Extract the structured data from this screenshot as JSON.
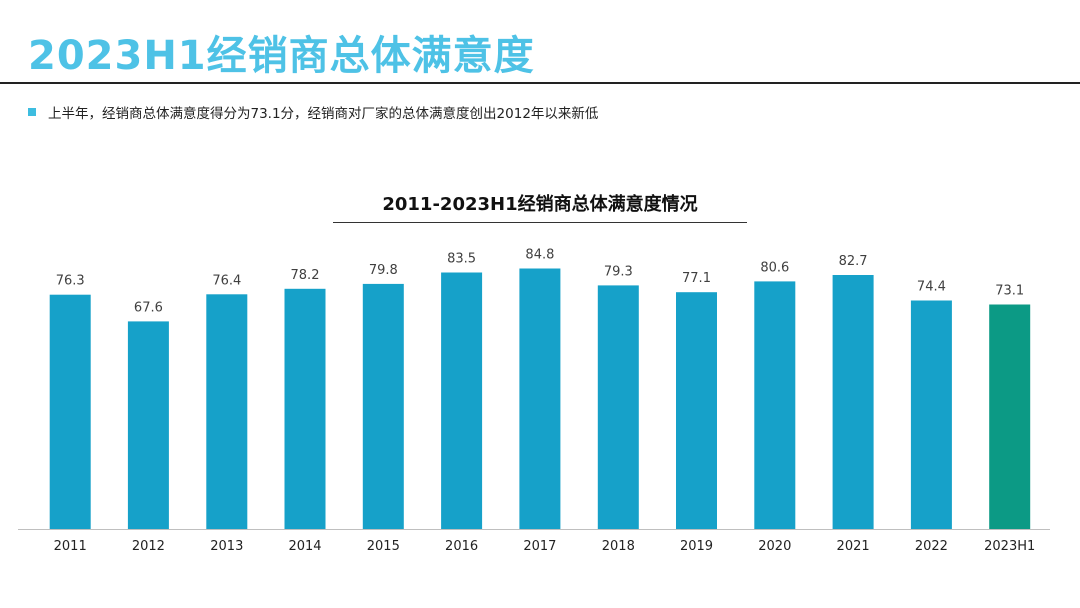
{
  "page": {
    "title": "2023H1经销商总体满意度",
    "title_color": "#4ec2e6",
    "bullet_text": "上半年，经销商总体满意度得分为73.1分，经销商对厂家的总体满意度创出2012年以来新低",
    "bullet_color": "#3dbde0"
  },
  "chart_data": {
    "type": "bar",
    "title": "2011-2023H1经销商总体满意度情况",
    "xlabel": "",
    "ylabel": "",
    "categories": [
      "2011",
      "2012",
      "2013",
      "2014",
      "2015",
      "2016",
      "2017",
      "2018",
      "2019",
      "2020",
      "2021",
      "2022",
      "2023H1"
    ],
    "values": [
      76.3,
      67.6,
      76.4,
      78.2,
      79.8,
      83.5,
      84.8,
      79.3,
      77.1,
      80.6,
      82.7,
      74.4,
      73.1
    ],
    "ylim": [
      0,
      98
    ],
    "data_labels": true,
    "grid": false,
    "legend": "none",
    "bar_color": "#16a1c9",
    "highlight_color": "#0c9a85",
    "highlight_category": "2023H1"
  }
}
